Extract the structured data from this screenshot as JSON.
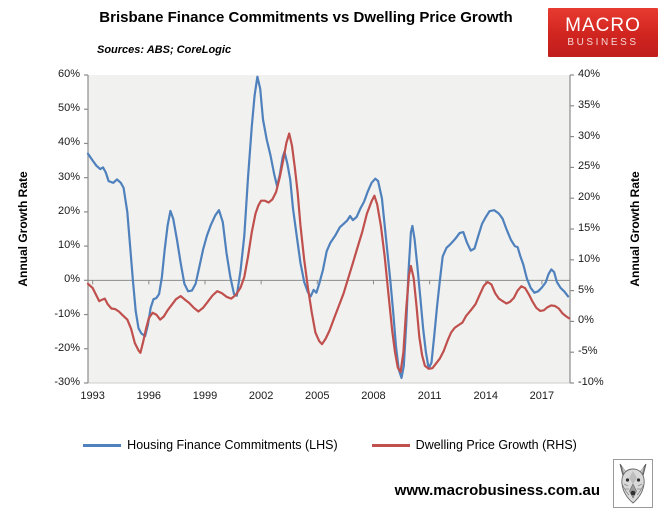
{
  "header": {
    "title": "Brisbane Finance Commitments vs Dwelling Price Growth",
    "sources": "Sources: ABS; CoreLogic"
  },
  "logo": {
    "line1": "MACRO",
    "line2": "BUSINESS",
    "bg_color": "#d0241f"
  },
  "footer": {
    "url": "www.macrobusiness.com.au",
    "wolf_logo": "wolf-head-sketch"
  },
  "chart_data": {
    "type": "line",
    "title": "Brisbane Finance Commitments vs Dwelling Price Growth",
    "plot_bg": "#f1f1ef",
    "axis_color": "#8c8c8c",
    "zero_line": "LHS 0% horizontal line across plot",
    "legend_position": "bottom",
    "x_range": [
      1992.75,
      2018.5
    ],
    "x_ticks": [
      "1993",
      "1996",
      "1999",
      "2002",
      "2005",
      "2008",
      "2011",
      "2014",
      "2017"
    ],
    "x_tick_years": [
      1993,
      1996,
      1999,
      2002,
      2005,
      2008,
      2011,
      2014,
      2017
    ],
    "left_axis": {
      "label": "Annual Growth Rate",
      "range": [
        -30,
        60
      ],
      "ticks": [
        "60%",
        "50%",
        "40%",
        "30%",
        "20%",
        "10%",
        "0%",
        "-10%",
        "-20%",
        "-30%"
      ]
    },
    "right_axis": {
      "label": "Annual Growth Rate",
      "range": [
        -10,
        40
      ],
      "ticks": [
        "40%",
        "35%",
        "30%",
        "25%",
        "20%",
        "15%",
        "10%",
        "5%",
        "0%",
        "-5%",
        "-10%"
      ]
    },
    "series": [
      {
        "name": "Housing Finance Commitments (LHS)",
        "axis": "left",
        "color": "#4f81bd",
        "points": [
          [
            1992.75,
            37
          ],
          [
            1993,
            35
          ],
          [
            1993.2,
            33.5
          ],
          [
            1993.4,
            32.5
          ],
          [
            1993.55,
            33
          ],
          [
            1993.7,
            31.5
          ],
          [
            1993.85,
            29
          ],
          [
            1994.1,
            28.5
          ],
          [
            1994.3,
            29.5
          ],
          [
            1994.5,
            28.5
          ],
          [
            1994.65,
            27
          ],
          [
            1994.85,
            20
          ],
          [
            1995,
            10
          ],
          [
            1995.15,
            0
          ],
          [
            1995.3,
            -9
          ],
          [
            1995.45,
            -14
          ],
          [
            1995.6,
            -15.5
          ],
          [
            1995.8,
            -16.3
          ],
          [
            1995.95,
            -13
          ],
          [
            1996.1,
            -8
          ],
          [
            1996.25,
            -5.5
          ],
          [
            1996.4,
            -5.2
          ],
          [
            1996.55,
            -4
          ],
          [
            1996.7,
            1
          ],
          [
            1996.85,
            9
          ],
          [
            1997,
            16
          ],
          [
            1997.15,
            20.3
          ],
          [
            1997.3,
            18
          ],
          [
            1997.5,
            12
          ],
          [
            1997.7,
            5
          ],
          [
            1997.9,
            -1
          ],
          [
            1998.1,
            -3.2
          ],
          [
            1998.3,
            -3
          ],
          [
            1998.5,
            -1
          ],
          [
            1998.7,
            4
          ],
          [
            1998.9,
            9
          ],
          [
            1999.1,
            13
          ],
          [
            1999.3,
            16
          ],
          [
            1999.55,
            19
          ],
          [
            1999.75,
            20.5
          ],
          [
            1999.95,
            17
          ],
          [
            2000.15,
            8
          ],
          [
            2000.35,
            1
          ],
          [
            2000.55,
            -4
          ],
          [
            2000.7,
            -4.5
          ],
          [
            2000.9,
            3
          ],
          [
            2001.1,
            13
          ],
          [
            2001.3,
            30
          ],
          [
            2001.5,
            45
          ],
          [
            2001.65,
            54
          ],
          [
            2001.8,
            59.5
          ],
          [
            2001.95,
            56
          ],
          [
            2002.1,
            47
          ],
          [
            2002.3,
            41
          ],
          [
            2002.5,
            36.5
          ],
          [
            2002.7,
            31
          ],
          [
            2002.85,
            27.5
          ],
          [
            2003,
            31
          ],
          [
            2003.15,
            36
          ],
          [
            2003.25,
            37.6
          ],
          [
            2003.4,
            34
          ],
          [
            2003.55,
            29.5
          ],
          [
            2003.7,
            21
          ],
          [
            2003.9,
            13
          ],
          [
            2004.1,
            5
          ],
          [
            2004.3,
            -0.5
          ],
          [
            2004.5,
            -3.5
          ],
          [
            2004.65,
            -4.7
          ],
          [
            2004.8,
            -2.8
          ],
          [
            2004.95,
            -3.6
          ],
          [
            2005.1,
            -1
          ],
          [
            2005.3,
            3
          ],
          [
            2005.5,
            8.5
          ],
          [
            2005.7,
            11
          ],
          [
            2005.95,
            13
          ],
          [
            2006.2,
            15.5
          ],
          [
            2006.4,
            16.5
          ],
          [
            2006.6,
            17.5
          ],
          [
            2006.75,
            18.8
          ],
          [
            2006.9,
            17.6
          ],
          [
            2007.1,
            18.5
          ],
          [
            2007.3,
            21
          ],
          [
            2007.5,
            23
          ],
          [
            2007.7,
            26
          ],
          [
            2007.9,
            28.5
          ],
          [
            2008.1,
            29.7
          ],
          [
            2008.25,
            29
          ],
          [
            2008.45,
            24
          ],
          [
            2008.6,
            16
          ],
          [
            2008.75,
            8
          ],
          [
            2008.9,
            0
          ],
          [
            2009.05,
            -9
          ],
          [
            2009.2,
            -19
          ],
          [
            2009.35,
            -26
          ],
          [
            2009.5,
            -28.5
          ],
          [
            2009.62,
            -25
          ],
          [
            2009.75,
            -13
          ],
          [
            2009.88,
            3
          ],
          [
            2010,
            14
          ],
          [
            2010.08,
            15.9
          ],
          [
            2010.2,
            12
          ],
          [
            2010.35,
            4
          ],
          [
            2010.5,
            -5
          ],
          [
            2010.65,
            -14
          ],
          [
            2010.8,
            -21
          ],
          [
            2010.95,
            -25.8
          ],
          [
            2011.1,
            -24
          ],
          [
            2011.25,
            -16
          ],
          [
            2011.4,
            -7.5
          ],
          [
            2011.55,
            0
          ],
          [
            2011.7,
            7
          ],
          [
            2011.9,
            9.5
          ],
          [
            2012.1,
            10.5
          ],
          [
            2012.35,
            12
          ],
          [
            2012.6,
            13.8
          ],
          [
            2012.8,
            14.1
          ],
          [
            2013,
            11
          ],
          [
            2013.2,
            8.7
          ],
          [
            2013.4,
            9.3
          ],
          [
            2013.6,
            13
          ],
          [
            2013.8,
            16.5
          ],
          [
            2014,
            18.5
          ],
          [
            2014.2,
            20.2
          ],
          [
            2014.45,
            20.5
          ],
          [
            2014.7,
            19.5
          ],
          [
            2014.9,
            18
          ],
          [
            2015.1,
            15
          ],
          [
            2015.35,
            11.8
          ],
          [
            2015.55,
            10
          ],
          [
            2015.7,
            9.7
          ],
          [
            2015.85,
            7
          ],
          [
            2016,
            4.7
          ],
          [
            2016.2,
            0.5
          ],
          [
            2016.4,
            -2.2
          ],
          [
            2016.6,
            -3.6
          ],
          [
            2016.8,
            -3.2
          ],
          [
            2017,
            -2.1
          ],
          [
            2017.2,
            -0.6
          ],
          [
            2017.35,
            1.8
          ],
          [
            2017.5,
            3.2
          ],
          [
            2017.65,
            2.4
          ],
          [
            2017.8,
            -0.5
          ],
          [
            2018,
            -2.2
          ],
          [
            2018.2,
            -3.3
          ],
          [
            2018.4,
            -4.7
          ]
        ]
      },
      {
        "name": "Dwelling Price Growth (RHS)",
        "axis": "right",
        "color": "#c0504d",
        "points": [
          [
            1992.75,
            6.1
          ],
          [
            1993,
            5.4
          ],
          [
            1993.2,
            4.2
          ],
          [
            1993.35,
            3.3
          ],
          [
            1993.5,
            3.5
          ],
          [
            1993.65,
            3.7
          ],
          [
            1993.8,
            2.8
          ],
          [
            1994,
            2.1
          ],
          [
            1994.2,
            2
          ],
          [
            1994.4,
            1.6
          ],
          [
            1994.6,
            1
          ],
          [
            1994.85,
            0.3
          ],
          [
            1995.05,
            -1.2
          ],
          [
            1995.25,
            -3.5
          ],
          [
            1995.45,
            -4.7
          ],
          [
            1995.55,
            -5.1
          ],
          [
            1995.7,
            -3.3
          ],
          [
            1995.85,
            -1.2
          ],
          [
            1996,
            0.5
          ],
          [
            1996.2,
            1.4
          ],
          [
            1996.4,
            1.1
          ],
          [
            1996.6,
            0.3
          ],
          [
            1996.8,
            0.8
          ],
          [
            1997,
            1.8
          ],
          [
            1997.2,
            2.6
          ],
          [
            1997.45,
            3.6
          ],
          [
            1997.7,
            4.1
          ],
          [
            1997.9,
            3.6
          ],
          [
            1998.15,
            3
          ],
          [
            1998.4,
            2.2
          ],
          [
            1998.65,
            1.6
          ],
          [
            1998.9,
            2.2
          ],
          [
            1999.15,
            3.2
          ],
          [
            1999.4,
            4.2
          ],
          [
            1999.65,
            4.9
          ],
          [
            1999.9,
            4.6
          ],
          [
            2000.15,
            4
          ],
          [
            2000.4,
            3.7
          ],
          [
            2000.65,
            4.3
          ],
          [
            2000.9,
            5.5
          ],
          [
            2001.1,
            7.2
          ],
          [
            2001.3,
            10.5
          ],
          [
            2001.5,
            14.5
          ],
          [
            2001.7,
            17.5
          ],
          [
            2001.85,
            18.8
          ],
          [
            2002,
            19.6
          ],
          [
            2002.2,
            19.6
          ],
          [
            2002.4,
            19.3
          ],
          [
            2002.6,
            19.8
          ],
          [
            2002.8,
            21
          ],
          [
            2003,
            23.5
          ],
          [
            2003.2,
            26.5
          ],
          [
            2003.35,
            29
          ],
          [
            2003.5,
            30.5
          ],
          [
            2003.65,
            28.5
          ],
          [
            2003.8,
            25
          ],
          [
            2003.95,
            21
          ],
          [
            2004.1,
            15.5
          ],
          [
            2004.3,
            10
          ],
          [
            2004.5,
            5.5
          ],
          [
            2004.7,
            1.5
          ],
          [
            2004.9,
            -1.8
          ],
          [
            2005.1,
            -3.2
          ],
          [
            2005.25,
            -3.7
          ],
          [
            2005.45,
            -2.8
          ],
          [
            2005.65,
            -1.5
          ],
          [
            2005.9,
            0.5
          ],
          [
            2006.15,
            2.5
          ],
          [
            2006.4,
            4.5
          ],
          [
            2006.65,
            7
          ],
          [
            2006.9,
            9.5
          ],
          [
            2007.15,
            12
          ],
          [
            2007.4,
            14.5
          ],
          [
            2007.65,
            17.5
          ],
          [
            2007.9,
            19.5
          ],
          [
            2008.05,
            20.4
          ],
          [
            2008.2,
            19
          ],
          [
            2008.4,
            15.5
          ],
          [
            2008.6,
            10.5
          ],
          [
            2008.8,
            4.5
          ],
          [
            2009,
            -1.5
          ],
          [
            2009.15,
            -5
          ],
          [
            2009.3,
            -7.5
          ],
          [
            2009.45,
            -8.2
          ],
          [
            2009.6,
            -5
          ],
          [
            2009.75,
            2
          ],
          [
            2009.9,
            7.5
          ],
          [
            2010,
            9
          ],
          [
            2010.15,
            7
          ],
          [
            2010.3,
            2.5
          ],
          [
            2010.45,
            -2.5
          ],
          [
            2010.6,
            -5.5
          ],
          [
            2010.75,
            -7.2
          ],
          [
            2010.95,
            -7.7
          ],
          [
            2011.15,
            -7.6
          ],
          [
            2011.35,
            -6.8
          ],
          [
            2011.55,
            -6
          ],
          [
            2011.75,
            -4.8
          ],
          [
            2011.95,
            -3.2
          ],
          [
            2012.15,
            -1.8
          ],
          [
            2012.35,
            -1
          ],
          [
            2012.55,
            -0.6
          ],
          [
            2012.75,
            -0.2
          ],
          [
            2012.95,
            0.9
          ],
          [
            2013.2,
            1.8
          ],
          [
            2013.45,
            2.8
          ],
          [
            2013.7,
            4.5
          ],
          [
            2013.9,
            5.8
          ],
          [
            2014.1,
            6.4
          ],
          [
            2014.3,
            6
          ],
          [
            2014.5,
            4.6
          ],
          [
            2014.7,
            3.7
          ],
          [
            2014.9,
            3.3
          ],
          [
            2015.1,
            2.9
          ],
          [
            2015.3,
            3.2
          ],
          [
            2015.5,
            3.8
          ],
          [
            2015.7,
            5
          ],
          [
            2015.9,
            5.7
          ],
          [
            2016.1,
            5.4
          ],
          [
            2016.3,
            4.4
          ],
          [
            2016.5,
            3.2
          ],
          [
            2016.7,
            2.2
          ],
          [
            2016.9,
            1.7
          ],
          [
            2017.1,
            1.8
          ],
          [
            2017.3,
            2.3
          ],
          [
            2017.5,
            2.6
          ],
          [
            2017.7,
            2.5
          ],
          [
            2017.9,
            2.1
          ],
          [
            2018.1,
            1.3
          ],
          [
            2018.3,
            0.8
          ],
          [
            2018.45,
            0.5
          ]
        ]
      }
    ]
  }
}
